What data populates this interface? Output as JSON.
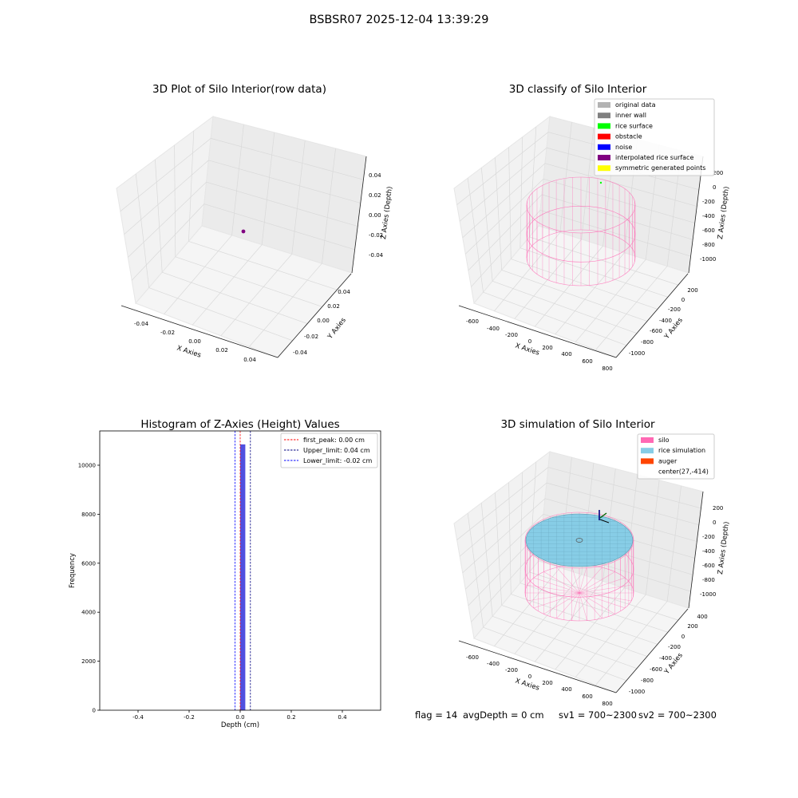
{
  "figure": {
    "suptitle": "BSBSR07 2025-12-04 13:39:29",
    "footer": {
      "flag": "flag = 14",
      "avg_depth": "avgDepth = 0 cm",
      "sv1": "sv1 = 700~2300",
      "sv2": "sv2 = 700~2300"
    }
  },
  "chart_data": [
    {
      "type": "scatter3d",
      "title": "3D Plot of Silo Interior(row data)",
      "xlabel": "X Axies",
      "ylabel": "Y Axies",
      "zlabel": "Z Axies (Depth)",
      "xticks": [
        "-0.04",
        "-0.02",
        "0.00",
        "0.02",
        "0.04"
      ],
      "yticks": [
        "-0.04",
        "-0.02",
        "0.00",
        "0.02",
        "0.04"
      ],
      "zticks": [
        "0.04",
        "0.02",
        "0.00",
        "-0.02",
        "-0.04"
      ],
      "xlim": [
        -0.05,
        0.05
      ],
      "ylim": [
        -0.05,
        0.05
      ],
      "zlim": [
        -0.05,
        0.05
      ],
      "points": [
        {
          "x": 0,
          "y": 0,
          "z": 0
        }
      ],
      "point_color": "#800080"
    },
    {
      "type": "scatter3d",
      "title": "3D classify of Silo Interior",
      "xlabel": "X Axies",
      "ylabel": "Y Axies",
      "zlabel": "Z Axies (Depth)",
      "xticks": [
        "-600",
        "-400",
        "-200",
        "0",
        "200",
        "400",
        "600",
        "800"
      ],
      "yticks": [
        "-1000",
        "-800",
        "-600",
        "-400",
        "-200",
        "0",
        "200"
      ],
      "zticks": [
        "200",
        "0",
        "-200",
        "-400",
        "-600",
        "-800",
        "-1000"
      ],
      "legend": [
        {
          "name": "original data",
          "color": "#b3b3b3"
        },
        {
          "name": "inner wall",
          "color": "#808080"
        },
        {
          "name": "rice surface",
          "color": "#00ff00"
        },
        {
          "name": "obstacle",
          "color": "#ff0000"
        },
        {
          "name": "noise",
          "color": "#0000ff"
        },
        {
          "name": "interpolated rice surface",
          "color": "#800080"
        },
        {
          "name": "symmetric generated points",
          "color": "#ffff00"
        }
      ],
      "silo_color": "#ff69b4"
    },
    {
      "type": "bar",
      "title": "Histogram of Z-Axies (Height) Values",
      "xlabel": "Depth (cm)",
      "ylabel": "Frequency",
      "xlim": [
        -0.55,
        0.55
      ],
      "ylim": [
        0,
        11400
      ],
      "xticks": [
        -0.4,
        -0.2,
        0.0,
        0.2,
        0.4
      ],
      "xtick_labels": [
        "-0.4",
        "-0.2",
        "0.0",
        "0.2",
        "0.4"
      ],
      "yticks": [
        0,
        2000,
        4000,
        6000,
        8000,
        10000
      ],
      "ytick_labels": [
        "0",
        "2000",
        "4000",
        "6000",
        "8000",
        "10000"
      ],
      "bars": [
        {
          "x0": 0.0,
          "x1": 0.02,
          "value": 10850
        }
      ],
      "bar_color": "#5050e0",
      "lines": [
        {
          "name": "first_peak: 0.00 cm",
          "x": 0.0,
          "color": "#ff0000"
        },
        {
          "name": "Upper_limit: 0.04 cm",
          "x": 0.04,
          "color": "#000080"
        },
        {
          "name": "Lower_limit: -0.02 cm",
          "x": -0.02,
          "color": "#0000ff"
        }
      ]
    },
    {
      "type": "surface3d",
      "title": "3D simulation of Silo Interior",
      "xlabel": "X Axies",
      "ylabel": "Y Axies",
      "zlabel": "Z Axies (Depth)",
      "xticks": [
        "-600",
        "-400",
        "-200",
        "0",
        "200",
        "400",
        "600",
        "800"
      ],
      "yticks": [
        "-1000",
        "-800",
        "-600",
        "-400",
        "-200",
        "0",
        "200",
        "400"
      ],
      "zticks": [
        "200",
        "0",
        "-200",
        "-400",
        "-600",
        "-800",
        "-1000"
      ],
      "legend": [
        {
          "name": "silo",
          "color": "#ff69b4"
        },
        {
          "name": "rice simulation",
          "color": "#87cde6"
        },
        {
          "name": "auger",
          "color": "#ff4500"
        },
        {
          "name": "center(27,-414)",
          "color": ""
        }
      ]
    }
  ]
}
